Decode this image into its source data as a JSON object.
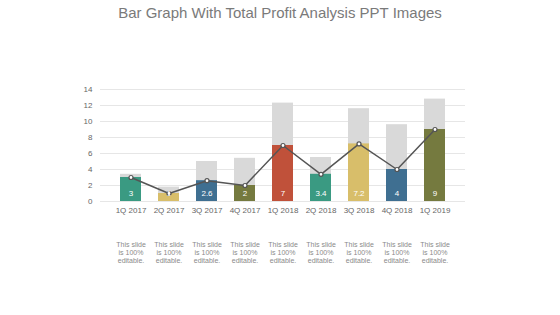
{
  "chart_data": {
    "type": "bar",
    "title": "Bar Graph With Total Profit Analysis PPT Images",
    "categories": [
      "1Q 2017",
      "2Q 2017",
      "3Q 2017",
      "4Q 2017",
      "1Q 2018",
      "2Q 2018",
      "3Q 2018",
      "4Q 2018",
      "1Q 2019"
    ],
    "series": [
      {
        "type": "bar",
        "color": "#d9d9d9",
        "values": [
          3.4,
          1.8,
          5,
          5.4,
          12.3,
          5.5,
          11.6,
          9.6,
          12.8
        ]
      },
      {
        "type": "bar",
        "colors": [
          "#3a9a82",
          "#d8be6a",
          "#3f6f91",
          "#757a3f",
          "#c0513a",
          "#3a9a82",
          "#d8be6a",
          "#3f6f91",
          "#757a3f"
        ],
        "values": [
          3,
          1,
          2.6,
          2,
          7,
          3.4,
          7.2,
          4,
          9
        ]
      },
      {
        "type": "line",
        "color": "#555555",
        "marker": "circle",
        "values": [
          3,
          1,
          2.6,
          2,
          7,
          3.4,
          7.2,
          4,
          9
        ]
      }
    ],
    "annotations": [
      "This slide is 100% editable.",
      "This slide is 100% editable.",
      "This slide is 100% editable.",
      "This slide is 100% editable.",
      "This slide is 100% editable.",
      "This slide is 100% editable.",
      "This slide is 100% editable.",
      "This slide is 100% editable.",
      "This slide is 100% editable."
    ],
    "ylim": [
      0,
      14
    ],
    "yticks": [
      0,
      2,
      4,
      6,
      8,
      10,
      12,
      14
    ],
    "grid": true,
    "data_labels": true,
    "stacked": false
  }
}
